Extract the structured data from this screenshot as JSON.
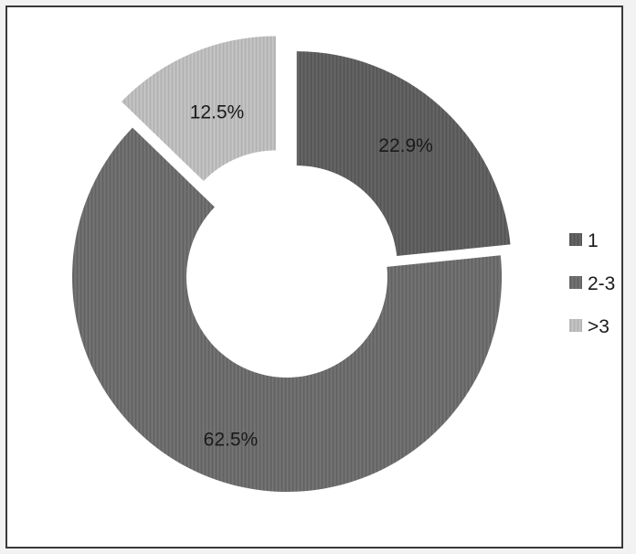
{
  "chart_data": {
    "type": "pie",
    "variant": "exploded-doughnut",
    "slices": [
      {
        "label": "1",
        "value": 22.9,
        "data_label": "22.9%",
        "color": "#5e5e5e"
      },
      {
        "label": "2-3",
        "value": 62.5,
        "data_label": "62.5%",
        "color": "#6c6c6c"
      },
      {
        "label": ">3",
        "value": 12.5,
        "data_label": "12.5%",
        "color": "#bcbcbc"
      }
    ],
    "legend_position": "right"
  }
}
